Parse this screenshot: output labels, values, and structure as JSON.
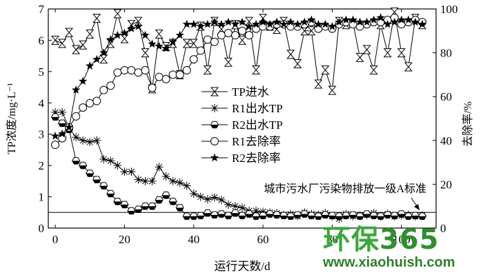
{
  "chart_data": {
    "type": "line",
    "xlabel": "运行天数/d",
    "ylabel_left": "TP浓度/mg·L⁻¹",
    "ylabel_right": "去除率/%",
    "xlim": [
      -2,
      110
    ],
    "xticks": [
      0,
      20,
      40,
      60,
      80,
      100
    ],
    "ylim_left": [
      0,
      7
    ],
    "yticks_left": [
      0,
      1,
      2,
      3,
      4,
      5,
      6,
      7
    ],
    "ylim_right": [
      0,
      100
    ],
    "yticks_right": [
      0,
      20,
      40,
      60,
      80,
      100
    ],
    "grid": false,
    "legend_position": "center",
    "legend": [
      {
        "name": "TP进水",
        "series": "tp_in",
        "marker": "hourglass"
      },
      {
        "name": "R1出水TP",
        "series": "r1_out",
        "marker": "asterisk"
      },
      {
        "name": "R2出水TP",
        "series": "r2_out",
        "marker": "half-filled-hexagon"
      },
      {
        "name": "R1去除率",
        "series": "r1_rem",
        "marker": "open-circle"
      },
      {
        "name": "R2去除率",
        "series": "r2_rem",
        "marker": "filled-star"
      }
    ],
    "reference_line": {
      "y": 0.5,
      "axis": "left",
      "label": "城市污水厂污染物排放一级A标准"
    },
    "series": [
      {
        "key": "tp_in",
        "name": "TP进水",
        "axis": "left",
        "x": [
          0,
          2,
          4,
          6,
          8,
          10,
          12,
          14,
          16,
          18,
          20,
          22,
          24,
          26,
          28,
          30,
          32,
          34,
          36,
          38,
          40,
          42,
          44,
          46,
          48,
          50,
          52,
          54,
          56,
          58,
          60,
          62,
          64,
          66,
          68,
          70,
          72,
          74,
          76,
          78,
          80,
          82,
          84,
          86,
          88,
          90,
          92,
          94,
          96,
          98,
          100,
          102,
          104,
          106
        ],
        "y": [
          6.0,
          5.9,
          6.25,
          5.7,
          5.85,
          6.2,
          6.7,
          5.4,
          5.9,
          6.85,
          6.05,
          6.5,
          6.6,
          5.6,
          4.45,
          6.2,
          5.8,
          5.9,
          4.9,
          5.9,
          5.9,
          6.45,
          5.05,
          6.6,
          6.35,
          5.3,
          6.5,
          6.0,
          6.6,
          5.05,
          6.7,
          6.45,
          6.35,
          6.6,
          5.55,
          5.25,
          6.3,
          6.3,
          4.6,
          5.05,
          4.4,
          6.6,
          6.5,
          6.55,
          5.45,
          5.7,
          5.05,
          6.5,
          5.6,
          6.9,
          5.6,
          5.15,
          6.7,
          6.5
        ]
      },
      {
        "key": "r1_out",
        "name": "R1出水TP",
        "axis": "left",
        "x": [
          0,
          2,
          4,
          6,
          8,
          10,
          12,
          14,
          16,
          18,
          20,
          22,
          24,
          26,
          28,
          30,
          32,
          34,
          36,
          38,
          40,
          42,
          44,
          46,
          48,
          50,
          52,
          54,
          56,
          58,
          60,
          62,
          64,
          66,
          68,
          70,
          72,
          74,
          76,
          78,
          80,
          82,
          84,
          86,
          88,
          90,
          92,
          94,
          96,
          98,
          100,
          102,
          104,
          106
        ],
        "y": [
          3.7,
          3.7,
          3.2,
          2.9,
          2.8,
          2.75,
          2.8,
          2.2,
          2.15,
          2.0,
          1.8,
          1.8,
          1.55,
          1.5,
          1.5,
          1.95,
          1.65,
          1.5,
          1.45,
          1.35,
          1.1,
          1.0,
          0.92,
          0.98,
          0.9,
          0.75,
          0.7,
          0.65,
          0.55,
          0.55,
          0.52,
          0.5,
          0.48,
          0.42,
          0.45,
          0.38,
          0.5,
          0.45,
          0.42,
          0.48,
          0.38,
          0.3,
          0.45,
          0.38,
          0.4,
          0.42,
          0.48,
          0.38,
          0.45,
          0.38,
          0.4,
          0.42,
          0.38,
          0.4
        ]
      },
      {
        "key": "r2_out",
        "name": "R2出水TP",
        "axis": "left",
        "x": [
          0,
          2,
          4,
          6,
          8,
          10,
          12,
          14,
          16,
          18,
          20,
          22,
          24,
          26,
          28,
          30,
          32,
          34,
          36,
          38,
          40,
          42,
          44,
          46,
          48,
          50,
          52,
          54,
          56,
          58,
          60,
          62,
          64,
          66,
          68,
          70,
          72,
          74,
          76,
          78,
          80,
          82,
          84,
          86,
          88,
          90,
          92,
          94,
          96,
          98,
          100,
          102,
          104,
          106
        ],
        "y": [
          3.55,
          3.35,
          3.15,
          2.15,
          2.0,
          1.75,
          1.55,
          1.35,
          1.1,
          0.85,
          0.75,
          0.55,
          0.6,
          0.7,
          0.7,
          0.9,
          1.05,
          0.85,
          0.65,
          0.38,
          0.38,
          0.4,
          0.48,
          0.42,
          0.45,
          0.4,
          0.48,
          0.4,
          0.45,
          0.38,
          0.4,
          0.45,
          0.42,
          0.4,
          0.38,
          0.42,
          0.45,
          0.4,
          0.38,
          0.42,
          0.4,
          0.38,
          0.4,
          0.42,
          0.38,
          0.45,
          0.4,
          0.38,
          0.42,
          0.4,
          0.45,
          0.38,
          0.4,
          0.38
        ]
      },
      {
        "key": "r1_rem",
        "name": "R1去除率",
        "axis": "right",
        "x": [
          0,
          2,
          4,
          6,
          8,
          10,
          12,
          14,
          16,
          18,
          20,
          22,
          24,
          26,
          28,
          30,
          32,
          34,
          36,
          38,
          40,
          42,
          44,
          46,
          48,
          50,
          52,
          54,
          56,
          58,
          60,
          62,
          64,
          66,
          68,
          70,
          72,
          74,
          76,
          78,
          80,
          82,
          84,
          86,
          88,
          90,
          92,
          94,
          96,
          98,
          100,
          102,
          104,
          106
        ],
        "y": [
          38,
          41,
          46,
          51,
          55,
          57,
          58,
          63,
          65,
          71,
          72,
          72,
          71,
          72,
          64,
          69,
          68,
          70,
          70,
          72,
          77,
          81,
          86,
          85,
          88,
          89,
          88,
          90,
          88,
          91,
          92,
          92,
          93,
          93,
          92,
          92,
          93,
          94,
          91,
          92,
          91,
          93,
          94,
          93,
          92,
          93,
          94,
          94,
          95,
          96,
          93,
          94,
          95,
          94
        ]
      },
      {
        "key": "r2_rem",
        "name": "R2去除率",
        "axis": "right",
        "x": [
          0,
          2,
          4,
          6,
          8,
          10,
          12,
          14,
          16,
          18,
          20,
          22,
          24,
          26,
          28,
          30,
          32,
          34,
          36,
          38,
          40,
          42,
          44,
          46,
          48,
          50,
          52,
          54,
          56,
          58,
          60,
          62,
          64,
          66,
          68,
          70,
          72,
          74,
          76,
          78,
          80,
          82,
          84,
          86,
          88,
          90,
          92,
          94,
          96,
          98,
          100,
          102,
          104,
          106
        ],
        "y": [
          42,
          43,
          46,
          63,
          67,
          74,
          77,
          80,
          86,
          88,
          89,
          91,
          92,
          88,
          84,
          83,
          82,
          85,
          88,
          93,
          93,
          92,
          93,
          94,
          93,
          94,
          93,
          94,
          92,
          93,
          94,
          93,
          94,
          93,
          94,
          93,
          94,
          95,
          93,
          93,
          92,
          94,
          95,
          95,
          94,
          94,
          95,
          96,
          93,
          94,
          95,
          95,
          94,
          93
        ]
      }
    ]
  },
  "watermark": {
    "logo_text": "环保",
    "logo_number": "365",
    "url": "www.xiaohuish.com"
  }
}
